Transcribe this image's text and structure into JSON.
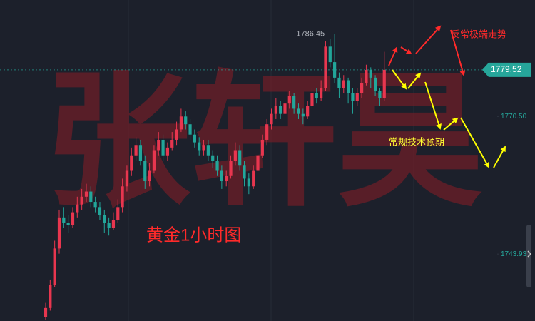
{
  "chart_data": {
    "type": "candlestick",
    "title": "黄金1小时图",
    "watermark": "张轩昊",
    "annotations": [
      "反常极端走势",
      "常规技术预期"
    ],
    "up_color": "#e8364f",
    "down_color": "#22a69a",
    "ylim": [
      1731,
      1793
    ],
    "yticks": [
      {
        "value": 1770.5,
        "label": "1770.50"
      },
      {
        "value": 1743.93,
        "label": "1743.93"
      }
    ],
    "last_price": 1779.52,
    "high_marker": 1786.45,
    "candle_fields": [
      "open",
      "high",
      "low",
      "close"
    ],
    "candles": [
      [
        1731.8,
        1734.5,
        1731.2,
        1733.5
      ],
      [
        1733.5,
        1739,
        1733,
        1738
      ],
      [
        1738,
        1746.5,
        1737.5,
        1745
      ],
      [
        1745,
        1752.5,
        1744,
        1751
      ],
      [
        1751,
        1753,
        1749,
        1750
      ],
      [
        1750,
        1751.5,
        1748,
        1749.5
      ],
      [
        1749.5,
        1753,
        1749,
        1752
      ],
      [
        1752,
        1755,
        1751,
        1753.5
      ],
      [
        1753.5,
        1756.5,
        1752.5,
        1755
      ],
      [
        1755,
        1757.5,
        1754,
        1756
      ],
      [
        1756,
        1757,
        1753,
        1754
      ],
      [
        1754,
        1755,
        1752,
        1753
      ],
      [
        1753,
        1754,
        1750.5,
        1751.5
      ],
      [
        1751.5,
        1752.5,
        1748,
        1750
      ],
      [
        1750,
        1751,
        1747.5,
        1749
      ],
      [
        1749,
        1752,
        1748.5,
        1750.5
      ],
      [
        1750.5,
        1754.5,
        1750,
        1753
      ],
      [
        1753,
        1758.5,
        1752,
        1757
      ],
      [
        1757,
        1761,
        1756,
        1760
      ],
      [
        1760,
        1764.5,
        1759,
        1763
      ],
      [
        1763,
        1766.5,
        1762,
        1765
      ],
      [
        1765,
        1766,
        1761,
        1762
      ],
      [
        1762,
        1763,
        1756.5,
        1758
      ],
      [
        1758,
        1761.5,
        1757,
        1760
      ],
      [
        1760,
        1765,
        1759.5,
        1764
      ],
      [
        1764,
        1767.5,
        1763,
        1766
      ],
      [
        1766,
        1767,
        1762,
        1763
      ],
      [
        1763,
        1765.5,
        1762,
        1764.5
      ],
      [
        1764.5,
        1767.5,
        1764,
        1766
      ],
      [
        1766,
        1769.5,
        1765,
        1768
      ],
      [
        1768,
        1772,
        1767.5,
        1770.5
      ],
      [
        1770.5,
        1771.5,
        1768,
        1769
      ],
      [
        1769,
        1770,
        1766,
        1767
      ],
      [
        1767,
        1768,
        1764.5,
        1765.5
      ],
      [
        1765.5,
        1766.5,
        1763,
        1764
      ],
      [
        1764,
        1766,
        1763,
        1765
      ],
      [
        1765,
        1766,
        1762,
        1763
      ],
      [
        1763,
        1764,
        1760.5,
        1762
      ],
      [
        1762,
        1763,
        1759,
        1760
      ],
      [
        1760,
        1761,
        1756.5,
        1758
      ],
      [
        1758,
        1760,
        1757,
        1759
      ],
      [
        1759,
        1763,
        1758.5,
        1762
      ],
      [
        1762,
        1765.5,
        1761,
        1764
      ],
      [
        1764,
        1765,
        1760,
        1761
      ],
      [
        1761,
        1762,
        1757,
        1758.5
      ],
      [
        1758.5,
        1759.5,
        1755.5,
        1757
      ],
      [
        1757,
        1761,
        1756.5,
        1760
      ],
      [
        1760,
        1764,
        1759,
        1763
      ],
      [
        1763,
        1767,
        1762.5,
        1766
      ],
      [
        1766,
        1770,
        1765,
        1769
      ],
      [
        1769,
        1772,
        1768,
        1771
      ],
      [
        1771,
        1774,
        1770,
        1772.5
      ],
      [
        1772.5,
        1773.5,
        1770,
        1771
      ],
      [
        1771,
        1774,
        1770.5,
        1773
      ],
      [
        1773,
        1775.5,
        1772,
        1774.5
      ],
      [
        1774.5,
        1775,
        1771,
        1772
      ],
      [
        1772,
        1773,
        1770,
        1771
      ],
      [
        1771,
        1772,
        1769,
        1770.5
      ],
      [
        1770.5,
        1773.5,
        1770,
        1772.5
      ],
      [
        1772.5,
        1776,
        1772,
        1775
      ],
      [
        1775,
        1776,
        1773,
        1774
      ],
      [
        1774,
        1777.5,
        1773.5,
        1776
      ],
      [
        1776,
        1785,
        1775.5,
        1784
      ],
      [
        1784,
        1785.5,
        1780,
        1781
      ],
      [
        1781,
        1786.45,
        1777,
        1778
      ],
      [
        1778,
        1779,
        1774,
        1776
      ],
      [
        1776,
        1778.5,
        1775,
        1777.5
      ],
      [
        1777.5,
        1778,
        1773,
        1775
      ],
      [
        1775,
        1776,
        1771,
        1773.5
      ],
      [
        1773.5,
        1776,
        1772.5,
        1775
      ],
      [
        1775,
        1778,
        1774,
        1777
      ],
      [
        1777,
        1780.5,
        1776.5,
        1779.5
      ],
      [
        1779.5,
        1780,
        1776,
        1778
      ],
      [
        1778,
        1778.5,
        1774.5,
        1775.5
      ],
      [
        1775.5,
        1776,
        1772.5,
        1774
      ],
      [
        1774,
        1783,
        1773.5,
        1779.52
      ]
    ]
  }
}
